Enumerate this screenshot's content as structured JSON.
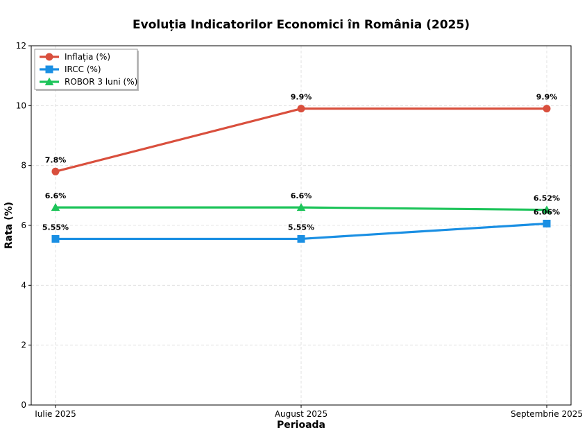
{
  "chart_data": {
    "type": "line",
    "title": "Evoluția Indicatorilor Economici în România (2025)",
    "xlabel": "Perioada",
    "ylabel": "Rata (%)",
    "categories": [
      "Iulie 2025",
      "August 2025",
      "Septembrie 2025"
    ],
    "ylim": [
      0,
      12
    ],
    "yticks": [
      0,
      2,
      4,
      6,
      8,
      10,
      12
    ],
    "grid": true,
    "legend_position": "top-left",
    "series": [
      {
        "name": "Inflația (%)",
        "values": [
          7.8,
          9.9,
          9.9
        ],
        "labels": [
          "7.8%",
          "9.9%",
          "9.9%"
        ],
        "color": "#d94f3d",
        "marker": "circle"
      },
      {
        "name": "IRCC (%)",
        "values": [
          5.55,
          5.55,
          6.06
        ],
        "labels": [
          "5.55%",
          "5.55%",
          "6.06%"
        ],
        "color": "#1a8fe3",
        "marker": "square"
      },
      {
        "name": "ROBOR 3 luni (%)",
        "values": [
          6.6,
          6.6,
          6.52
        ],
        "labels": [
          "6.6%",
          "6.6%",
          "6.52%"
        ],
        "color": "#1dc45a",
        "marker": "triangle"
      }
    ]
  }
}
